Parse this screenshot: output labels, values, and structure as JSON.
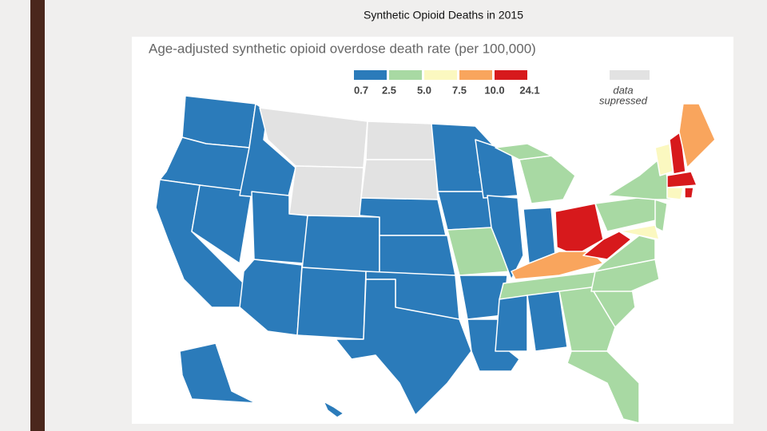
{
  "slide": {
    "title": "Synthetic Opioid Deaths in 2015"
  },
  "chart_data": {
    "type": "choropleth",
    "title": "Age-adjusted synthetic opioid overdose death rate (per 100,000)",
    "legend": {
      "bins": [
        0.7,
        2.5,
        {
          "value": 5,
          "label": "5.0"
        },
        7.5,
        {
          "value": 10,
          "label": "10.0"
        },
        24.1
      ],
      "colors": [
        "#2b7bba",
        "#a8d9a3",
        "#fbf8c0",
        "#f9a55d",
        "#d7191c"
      ],
      "suppressed": {
        "label": [
          "data",
          "supressed"
        ],
        "color": "#e2e2e2"
      }
    }
  }
}
